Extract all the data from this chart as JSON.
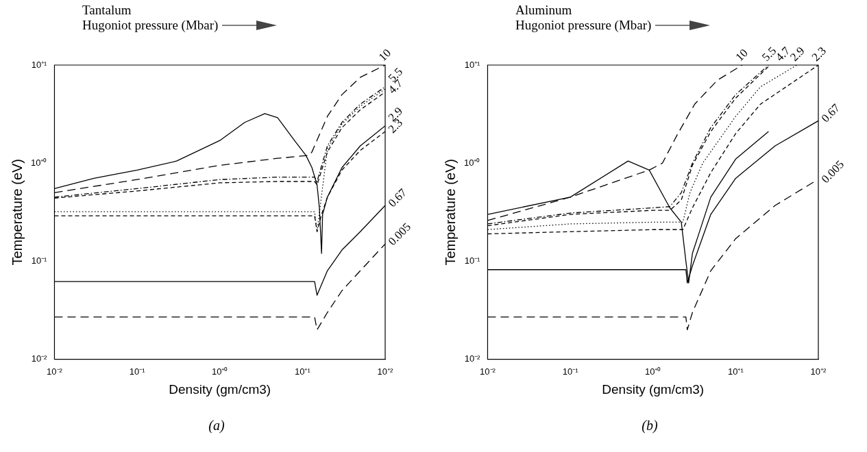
{
  "chart_data": [
    {
      "type": "line",
      "title": "Tantalum",
      "subtitle": "Hugoniot pressure (Mbar)",
      "xlabel": "Density (gm/cm3)",
      "ylabel": "Temperature (eV)",
      "annotations": [
        "(a)"
      ],
      "log": "xy",
      "grid": false,
      "legend": false,
      "marker": "none",
      "xlim": [
        0.01,
        100
      ],
      "ylim": [
        0.01,
        10
      ],
      "xticks": [
        {
          "value": 0.01,
          "label": "10⁻²"
        },
        {
          "value": 0.1,
          "label": "10⁻¹"
        },
        {
          "value": 1,
          "label": "10⁺⁰"
        },
        {
          "value": 10,
          "label": "10⁺¹"
        },
        {
          "value": 100,
          "label": "10⁺²"
        }
      ],
      "yticks": [
        {
          "value": 0.01,
          "label": "10⁻²"
        },
        {
          "value": 0.1,
          "label": "10⁻¹"
        },
        {
          "value": 1,
          "label": "10⁺⁰"
        },
        {
          "value": 10,
          "label": "10⁺¹"
        }
      ],
      "series": [
        {
          "name": "10",
          "color": "#000000",
          "line_style": "longdash",
          "x": [
            0.01,
            0.1,
            1,
            5,
            12,
            13,
            20,
            30,
            50,
            100
          ],
          "values": [
            0.5,
            0.68,
            0.95,
            1.12,
            1.2,
            1.3,
            3,
            5,
            7.5,
            10
          ]
        },
        {
          "name": "5.5",
          "color": "#000000",
          "line_style": "dashdot",
          "x": [
            0.01,
            0.1,
            1,
            5,
            14,
            15,
            20,
            30,
            50,
            100
          ],
          "values": [
            0.45,
            0.55,
            0.68,
            0.72,
            0.72,
            0.65,
            1.5,
            2.6,
            4,
            6
          ]
        },
        {
          "name": "4.7",
          "color": "#000000",
          "line_style": "dashed",
          "x": [
            0.01,
            0.1,
            1,
            5,
            14,
            15,
            20,
            30,
            50,
            100
          ],
          "values": [
            0.44,
            0.52,
            0.63,
            0.65,
            0.65,
            0.6,
            1.3,
            2.3,
            3.5,
            5.3
          ]
        },
        {
          "color": "#000000",
          "line_style": "dotted",
          "x": [
            0.01,
            0.1,
            1,
            5,
            14,
            15,
            20,
            30,
            50,
            100
          ],
          "values": [
            0.32,
            0.32,
            0.32,
            0.32,
            0.32,
            0.2,
            1.4,
            2.5,
            3.8,
            5.7
          ]
        },
        {
          "name": "2.9",
          "color": "#000000",
          "line_style": "solid",
          "x": [
            0.01,
            0.03,
            0.1,
            0.3,
            1,
            2,
            3.5,
            5,
            8,
            11,
            13,
            15,
            16,
            17,
            17.5,
            20,
            30,
            50,
            100
          ],
          "values": [
            0.55,
            0.7,
            0.85,
            1.05,
            1.7,
            2.6,
            3.2,
            2.9,
            1.7,
            1.2,
            0.9,
            0.6,
            0.35,
            0.12,
            0.3,
            0.45,
            0.9,
            1.5,
            2.4
          ]
        },
        {
          "name": "2.3",
          "color": "#000000",
          "line_style": "dashed",
          "x": [
            0.01,
            0.1,
            1,
            5,
            14,
            15,
            17,
            20,
            30,
            50,
            100
          ],
          "values": [
            0.29,
            0.29,
            0.29,
            0.29,
            0.29,
            0.2,
            0.3,
            0.45,
            0.85,
            1.35,
            2.1
          ]
        },
        {
          "name": "0.67",
          "color": "#000000",
          "line_style": "solid",
          "x": [
            0.01,
            1,
            14,
            15,
            20,
            30,
            50,
            100
          ],
          "values": [
            0.062,
            0.062,
            0.062,
            0.045,
            0.08,
            0.13,
            0.2,
            0.37
          ]
        },
        {
          "name": "0.005",
          "color": "#000000",
          "line_style": "longdash",
          "x": [
            0.01,
            1,
            14,
            15,
            20,
            30,
            50,
            100
          ],
          "values": [
            0.027,
            0.027,
            0.027,
            0.02,
            0.03,
            0.05,
            0.08,
            0.15
          ]
        }
      ]
    },
    {
      "type": "line",
      "title": "Aluminum",
      "subtitle": "Hugoniot pressure (Mbar)",
      "xlabel": "Density (gm/cm3)",
      "ylabel": "Temperature (eV)",
      "annotations": [
        "(b)"
      ],
      "log": "xy",
      "grid": false,
      "legend": false,
      "marker": "none",
      "xlim": [
        0.01,
        100
      ],
      "ylim": [
        0.01,
        10
      ],
      "xticks": [
        {
          "value": 0.01,
          "label": "10⁻²"
        },
        {
          "value": 0.1,
          "label": "10⁻¹"
        },
        {
          "value": 1,
          "label": "10⁺⁰"
        },
        {
          "value": 10,
          "label": "10⁺¹"
        },
        {
          "value": 100,
          "label": "10⁺²"
        }
      ],
      "yticks": [
        {
          "value": 0.01,
          "label": "10⁻²"
        },
        {
          "value": 0.1,
          "label": "10⁻¹"
        },
        {
          "value": 1,
          "label": "10⁺⁰"
        },
        {
          "value": 10,
          "label": "10⁺¹"
        }
      ],
      "series": [
        {
          "name": "10",
          "color": "#000000",
          "line_style": "longdash",
          "x": [
            0.01,
            0.1,
            0.9,
            1.3,
            2,
            3.2,
            6,
            12
          ],
          "values": [
            0.26,
            0.45,
            0.85,
            1,
            2,
            4,
            7,
            10
          ]
        },
        {
          "name": "5.5",
          "color": "#000000",
          "line_style": "dashdot",
          "x": [
            0.01,
            0.1,
            1,
            1.6,
            2.2,
            3,
            5,
            10,
            25
          ],
          "values": [
            0.24,
            0.31,
            0.35,
            0.36,
            0.5,
            1,
            2.3,
            5,
            10
          ]
        },
        {
          "name": "4.7",
          "color": "#000000",
          "line_style": "dashed",
          "x": [
            0.01,
            0.1,
            1,
            1.6,
            2.2,
            3,
            5,
            10,
            26
          ],
          "values": [
            0.23,
            0.3,
            0.33,
            0.33,
            0.42,
            0.95,
            2.1,
            4.6,
            10
          ]
        },
        {
          "name": "2.9",
          "color": "#000000",
          "line_style": "dotted",
          "x": [
            0.01,
            0.1,
            1,
            2.3,
            2.8,
            4,
            10,
            20,
            55
          ],
          "values": [
            0.21,
            0.24,
            0.25,
            0.25,
            0.5,
            1,
            3,
            6,
            10
          ]
        },
        {
          "name": "2.3",
          "color": "#000000",
          "line_style": "dashed",
          "x": [
            0.01,
            0.1,
            1,
            2.3,
            3,
            5,
            10,
            20,
            100
          ],
          "values": [
            0.19,
            0.2,
            0.21,
            0.21,
            0.35,
            0.8,
            2,
            4,
            10
          ]
        },
        {
          "color": "#000000",
          "line_style": "solid",
          "x": [
            0.01,
            0.1,
            0.5,
            0.9,
            1.6,
            2.2,
            2.5,
            2.7,
            3,
            5,
            10,
            25
          ],
          "values": [
            0.3,
            0.45,
            1.05,
            0.85,
            0.35,
            0.25,
            0.1,
            0.06,
            0.12,
            0.45,
            1.1,
            2.1
          ]
        },
        {
          "name": "0.67",
          "color": "#000000",
          "line_style": "solid",
          "x": [
            0.01,
            1,
            2.5,
            2.6,
            3,
            5,
            10,
            30,
            100
          ],
          "values": [
            0.082,
            0.082,
            0.082,
            0.06,
            0.09,
            0.3,
            0.7,
            1.5,
            2.7
          ]
        },
        {
          "name": "0.005",
          "color": "#000000",
          "line_style": "longdash",
          "x": [
            0.01,
            1,
            2.5,
            2.6,
            3,
            5,
            10,
            30,
            90
          ],
          "values": [
            0.027,
            0.027,
            0.027,
            0.02,
            0.03,
            0.08,
            0.17,
            0.37,
            0.65
          ]
        }
      ]
    }
  ]
}
